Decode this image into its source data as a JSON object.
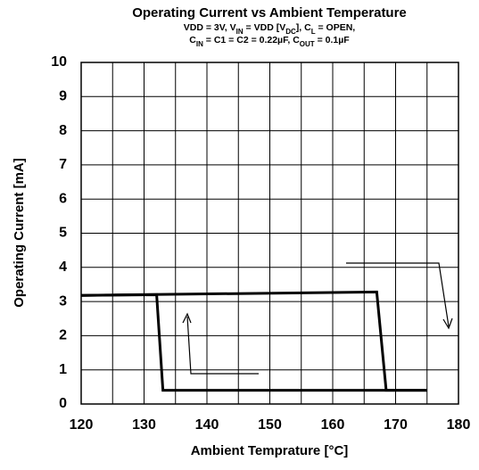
{
  "chart_data": {
    "type": "line",
    "title": "Operating Current vs Ambient Temperature",
    "subtitle": [
      [
        "VDD = 3V, V",
        "IN",
        " = VDD [V",
        "DC",
        "], C",
        "L",
        " = OPEN,"
      ],
      [
        "C",
        "IN",
        " = C1 = C2 = 0.22µF, C",
        "OUT",
        " = 0.1µF"
      ]
    ],
    "xlabel": "Ambient Temprature [°C]",
    "ylabel": "Operating Current [mA]",
    "xlim": [
      120,
      180
    ],
    "xticks": [
      120,
      130,
      140,
      150,
      160,
      170,
      180
    ],
    "xminorticks": [
      125,
      135,
      145,
      155,
      165,
      175
    ],
    "ylim": [
      0,
      10
    ],
    "yticks": [
      0,
      1,
      2,
      3,
      4,
      5,
      6,
      7,
      8,
      9,
      10
    ],
    "grid": true,
    "series": [
      {
        "color": "#000000",
        "x": [
          120,
          167,
          168.5,
          175
        ],
        "values": [
          3.18,
          3.28,
          0.4,
          0.4
        ]
      },
      {
        "color": "#000000",
        "x": [
          175,
          133,
          132,
          120
        ],
        "values": [
          0.4,
          0.4,
          3.2,
          3.18
        ]
      }
    ]
  }
}
